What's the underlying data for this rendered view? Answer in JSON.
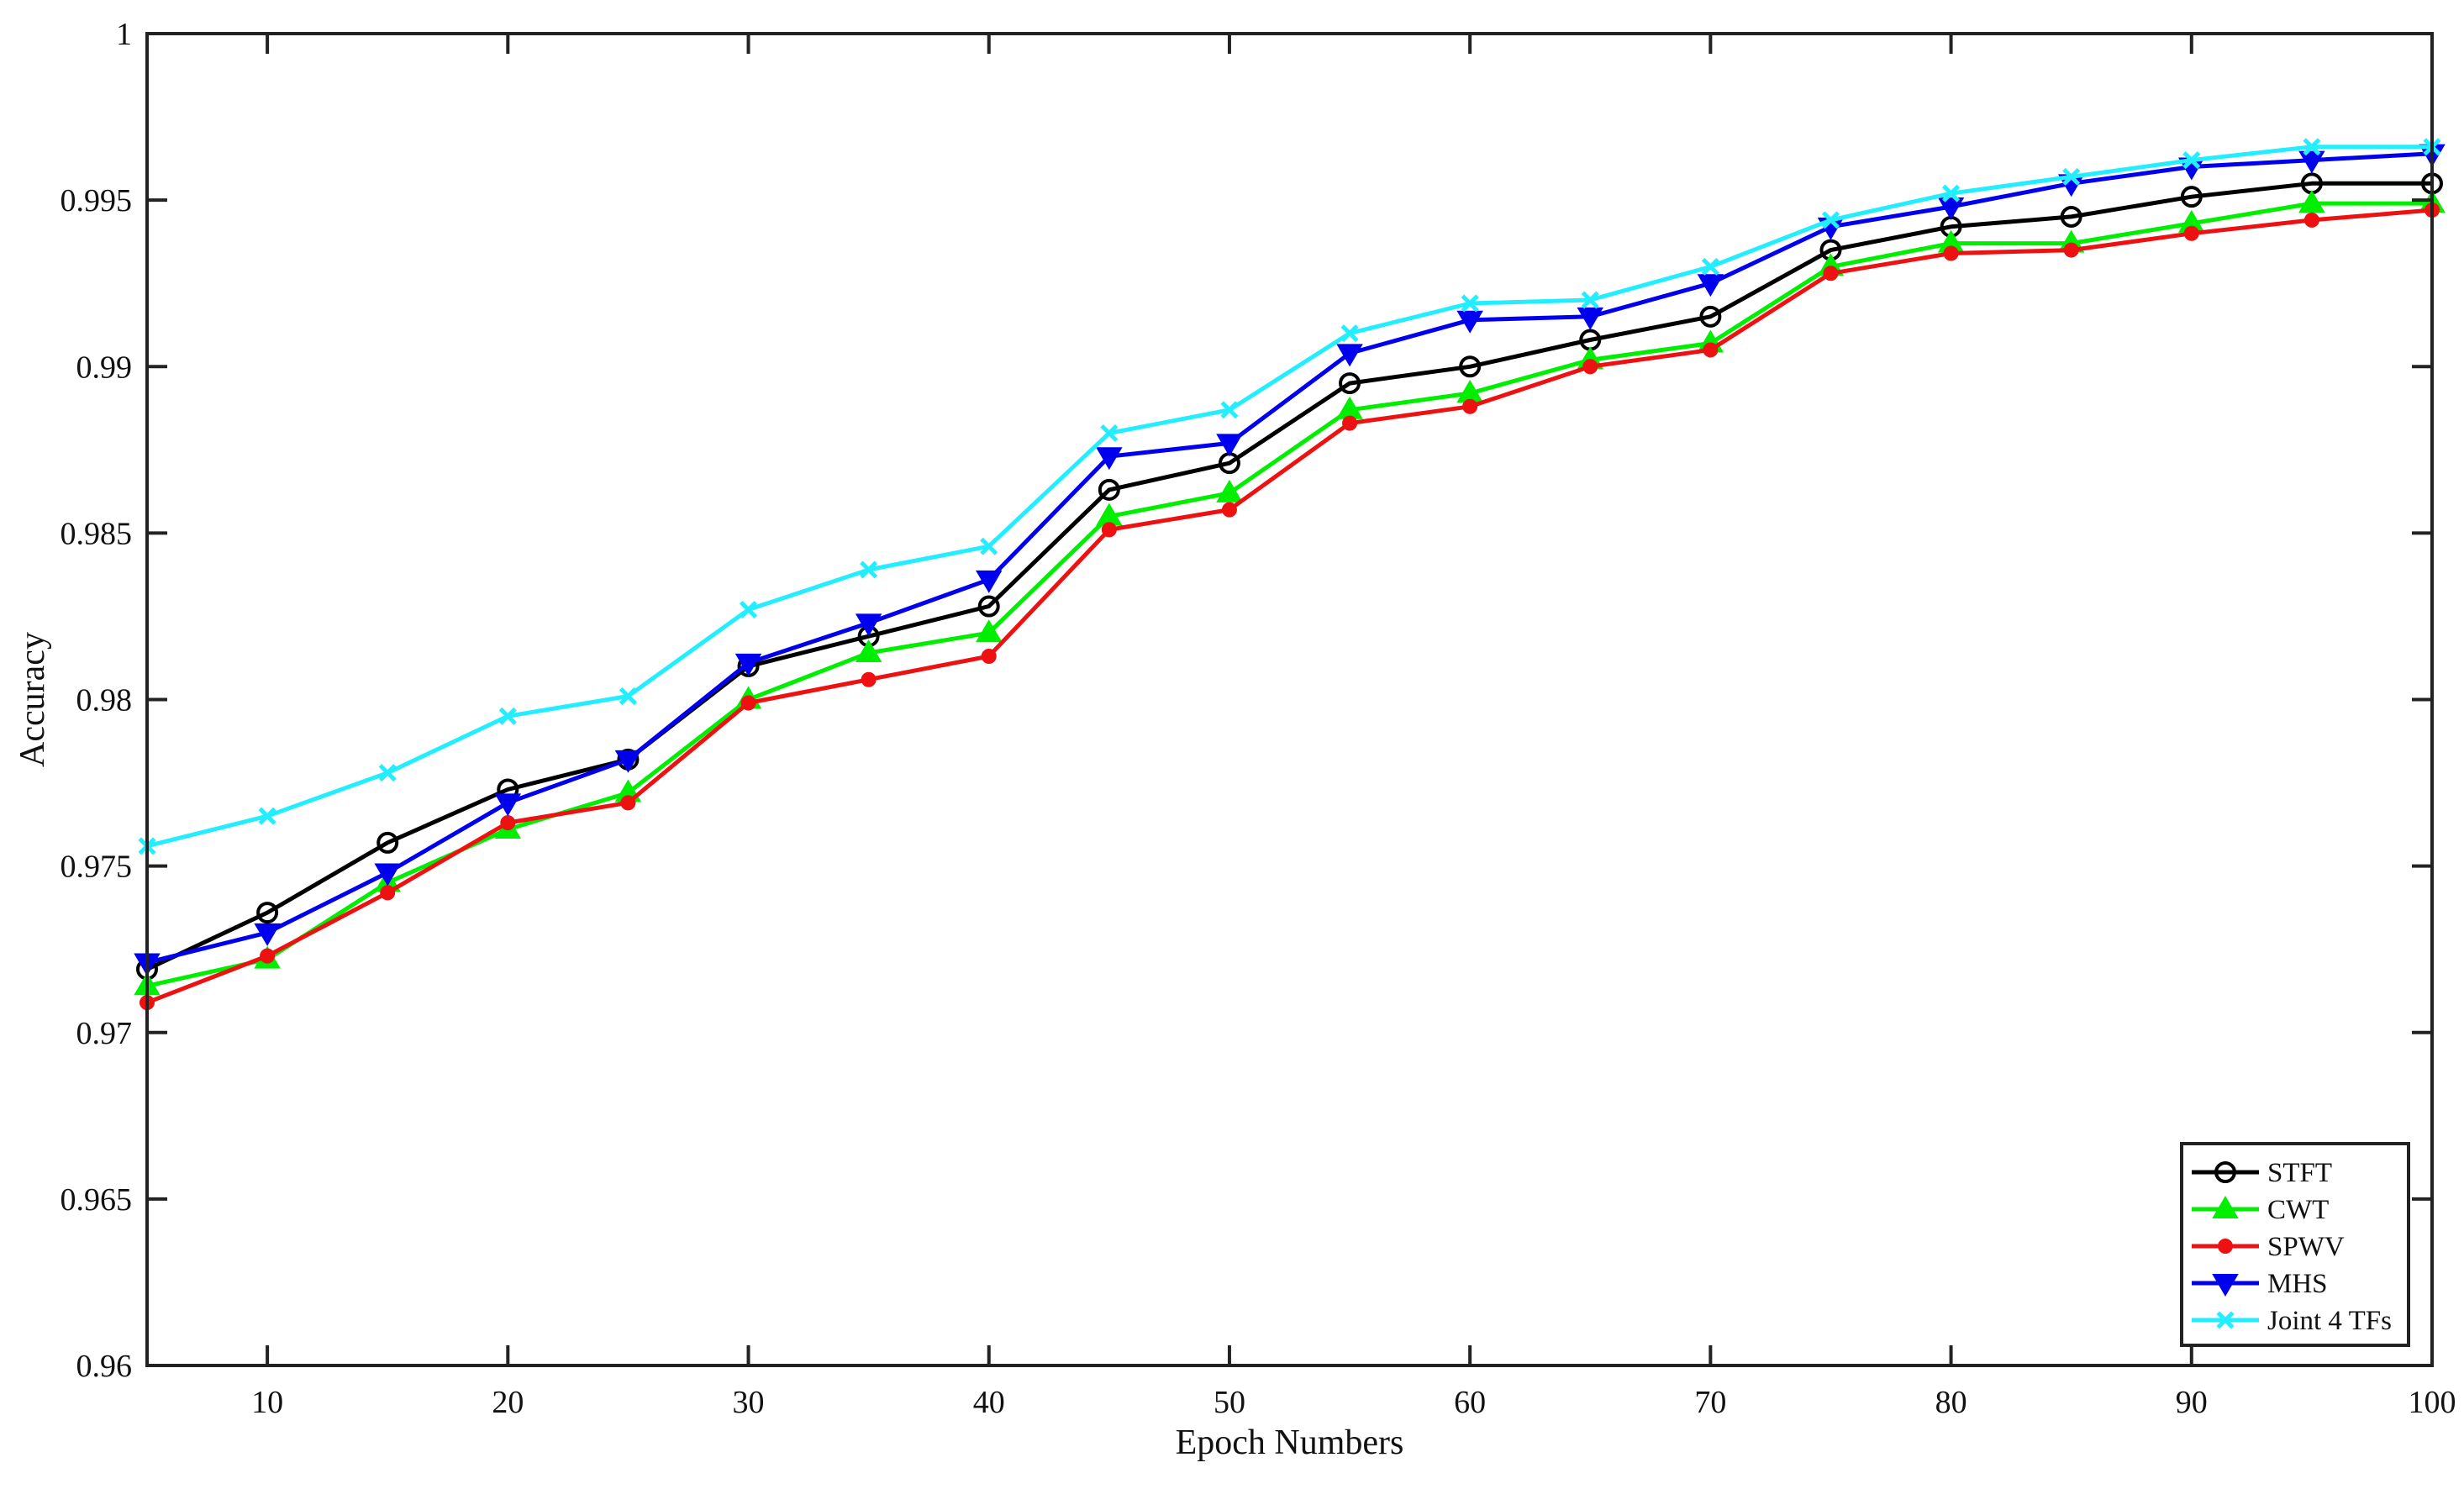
{
  "chart_data": {
    "type": "line",
    "title": "",
    "xlabel": "Epoch Numbers",
    "ylabel": "Accuracy",
    "xlim": [
      5,
      100
    ],
    "ylim": [
      0.96,
      1
    ],
    "x_ticks": [
      10,
      20,
      30,
      40,
      50,
      60,
      70,
      80,
      90,
      100
    ],
    "y_ticks": [
      0.96,
      0.965,
      0.97,
      0.975,
      0.98,
      0.985,
      0.99,
      0.995,
      1
    ],
    "x_tick_labels": [
      "10",
      "20",
      "30",
      "40",
      "50",
      "60",
      "70",
      "80",
      "90",
      "100"
    ],
    "y_tick_labels": [
      "0.96",
      "0.965",
      "0.97",
      "0.975",
      "0.98",
      "0.985",
      "0.99",
      "0.995",
      "1"
    ],
    "grid": false,
    "legend_position": "bottom-right",
    "x": [
      5,
      10,
      15,
      20,
      25,
      30,
      35,
      40,
      45,
      50,
      55,
      60,
      65,
      70,
      75,
      80,
      85,
      90,
      95,
      100
    ],
    "series": [
      {
        "name": "STFT",
        "color": "#000000",
        "marker": "circle",
        "values": [
          0.9719,
          0.9736,
          0.9757,
          0.9773,
          0.9782,
          0.981,
          0.9819,
          0.9828,
          0.9863,
          0.9871,
          0.9895,
          0.99,
          0.9908,
          0.9915,
          0.9935,
          0.9942,
          0.9945,
          0.9951,
          0.9955,
          0.9955
        ]
      },
      {
        "name": "CWT",
        "color": "#00ee00",
        "marker": "triangle-up",
        "values": [
          0.9714,
          0.9722,
          0.9745,
          0.9761,
          0.9772,
          0.98,
          0.9814,
          0.982,
          0.9855,
          0.9862,
          0.9887,
          0.9892,
          0.9902,
          0.9907,
          0.993,
          0.9937,
          0.9937,
          0.9943,
          0.9949,
          0.9949
        ]
      },
      {
        "name": "SPWV",
        "color": "#ee1111",
        "marker": "dot",
        "values": [
          0.9709,
          0.9723,
          0.9742,
          0.9763,
          0.9769,
          0.9799,
          0.9806,
          0.9813,
          0.9851,
          0.9857,
          0.9883,
          0.9888,
          0.99,
          0.9905,
          0.9928,
          0.9934,
          0.9935,
          0.994,
          0.9944,
          0.9947
        ]
      },
      {
        "name": "MHS",
        "color": "#0000ee",
        "marker": "triangle-down",
        "values": [
          0.9721,
          0.973,
          0.9748,
          0.9769,
          0.9782,
          0.9811,
          0.9823,
          0.9836,
          0.9873,
          0.9877,
          0.9904,
          0.9914,
          0.9915,
          0.9925,
          0.9942,
          0.9948,
          0.9955,
          0.996,
          0.9962,
          0.9964
        ]
      },
      {
        "name": "Joint 4 TFs",
        "color": "#22eeff",
        "marker": "x",
        "values": [
          0.9756,
          0.9765,
          0.9778,
          0.9795,
          0.9801,
          0.9827,
          0.9839,
          0.9846,
          0.988,
          0.9887,
          0.991,
          0.9919,
          0.992,
          0.993,
          0.9944,
          0.9952,
          0.9957,
          0.9962,
          0.9966,
          0.9966
        ]
      }
    ]
  }
}
